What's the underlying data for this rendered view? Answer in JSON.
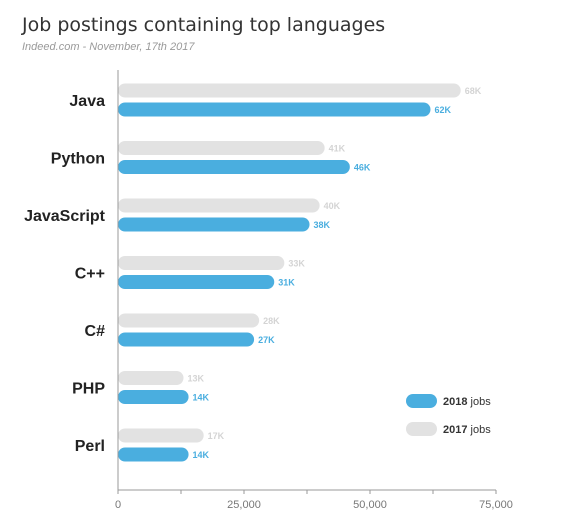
{
  "header": {
    "title": "Job postings containing top languages",
    "subtitle": "Indeed.com - November, 17th 2017"
  },
  "colors": {
    "jobs_2018": "#4aaedf",
    "jobs_2017": "#e2e2e2",
    "label_2017": "#d4d4d4",
    "axis": "#999999"
  },
  "legend": {
    "position": "bottom-right",
    "items": [
      {
        "year": "2018",
        "suffix": "jobs"
      },
      {
        "year": "2017",
        "suffix": "jobs"
      }
    ]
  },
  "chart_data": {
    "type": "bar",
    "orientation": "horizontal",
    "title": "Job postings containing top languages",
    "subtitle": "Indeed.com - November, 17th 2017",
    "categories": [
      "Java",
      "Python",
      "JavaScript",
      "C++",
      "C#",
      "PHP",
      "Perl"
    ],
    "series": [
      {
        "name": "2017 jobs",
        "values": [
          68000,
          41000,
          40000,
          33000,
          28000,
          13000,
          17000
        ],
        "labels": [
          "68K",
          "41K",
          "40K",
          "33K",
          "28K",
          "13K",
          "17K"
        ]
      },
      {
        "name": "2018 jobs",
        "values": [
          62000,
          46000,
          38000,
          31000,
          27000,
          14000,
          14000
        ],
        "labels": [
          "62K",
          "46K",
          "38K",
          "31K",
          "27K",
          "14K",
          "14K"
        ]
      }
    ],
    "xlim": [
      0,
      75000
    ],
    "xticks": [
      0,
      25000,
      50000,
      75000
    ],
    "xtick_labels": [
      "0",
      "25,000",
      "50,000",
      "75,000"
    ],
    "grid": false,
    "legend": "bottom-right"
  }
}
